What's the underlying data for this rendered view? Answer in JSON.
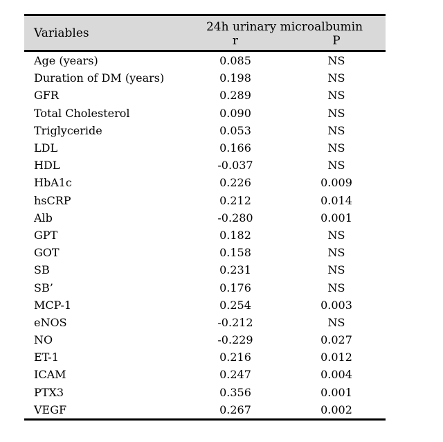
{
  "colors": {
    "page_background": "#ffffff",
    "header_background": "#d9d9d9",
    "rule_color": "#000000",
    "text_color": "#000000"
  },
  "table": {
    "header": {
      "variables_label": "Variables",
      "group_label": "24h urinary microalbumin",
      "r_label": "r",
      "p_label": "P"
    },
    "rows": [
      {
        "variable": "Age (years)",
        "r": "0.085",
        "p": "NS"
      },
      {
        "variable": "Duration of DM (years)",
        "r": "0.198",
        "p": "NS"
      },
      {
        "variable": "GFR",
        "r": "0.289",
        "p": "NS"
      },
      {
        "variable": "Total Cholesterol",
        "r": "0.090",
        "p": "NS"
      },
      {
        "variable": "Triglyceride",
        "r": "0.053",
        "p": "NS"
      },
      {
        "variable": "LDL",
        "r": "0.166",
        "p": "NS"
      },
      {
        "variable": "HDL",
        "r": "-0.037",
        "p": "NS"
      },
      {
        "variable": "HbA1c",
        "r": "0.226",
        "p": "0.009"
      },
      {
        "variable": "hsCRP",
        "r": "0.212",
        "p": "0.014"
      },
      {
        "variable": "Alb",
        "r": "-0.280",
        "p": "0.001"
      },
      {
        "variable": "GPT",
        "r": "0.182",
        "p": "NS"
      },
      {
        "variable": "GOT",
        "r": "0.158",
        "p": "NS"
      },
      {
        "variable": "SB",
        "r": "0.231",
        "p": "NS"
      },
      {
        "variable": "SB’",
        "r": "0.176",
        "p": "NS"
      },
      {
        "variable": "MCP-1",
        "r": "0.254",
        "p": "0.003"
      },
      {
        "variable": "eNOS",
        "r": "-0.212",
        "p": "NS"
      },
      {
        "variable": "NO",
        "r": "-0.229",
        "p": "0.027"
      },
      {
        "variable": "ET-1",
        "r": "0.216",
        "p": "0.012"
      },
      {
        "variable": "ICAM",
        "r": "0.247",
        "p": "0.004"
      },
      {
        "variable": "PTX3",
        "r": "0.356",
        "p": "0.001"
      },
      {
        "variable": "VEGF",
        "r": "0.267",
        "p": "0.002"
      }
    ]
  }
}
